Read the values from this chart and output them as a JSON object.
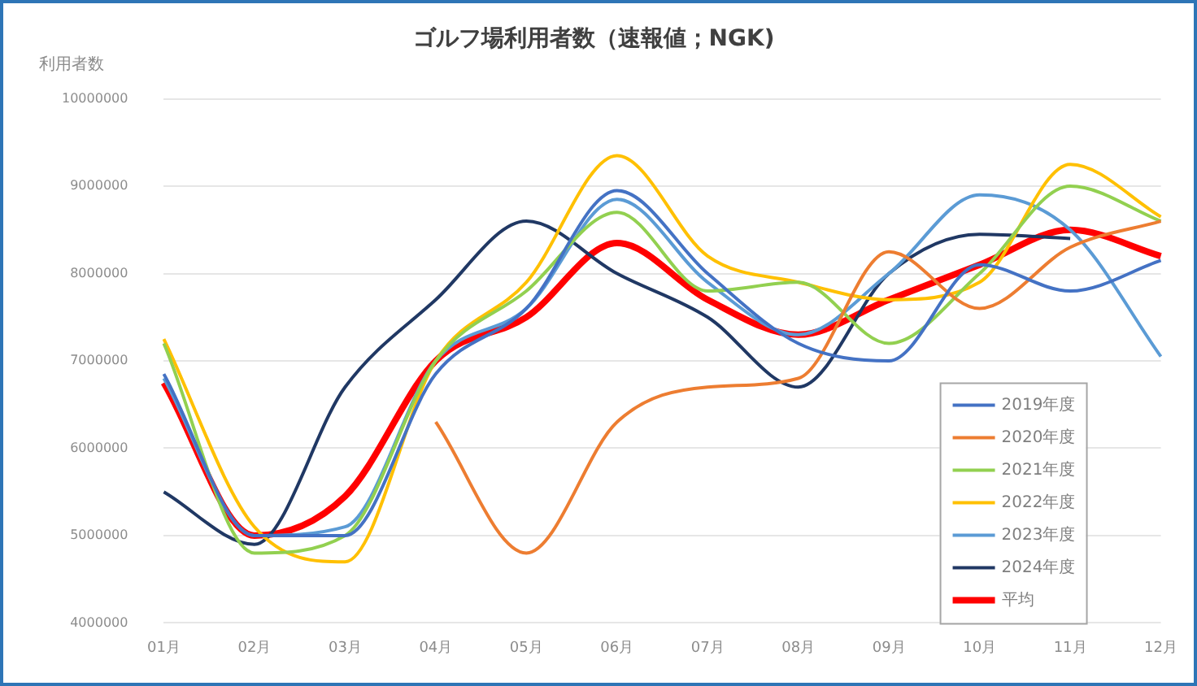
{
  "chart_data": {
    "type": "line",
    "title": "ゴルフ場利用者数（速報値；NGK)",
    "ylabel": "利用者数",
    "categories": [
      "01月",
      "02月",
      "03月",
      "04月",
      "05月",
      "06月",
      "07月",
      "08月",
      "09月",
      "10月",
      "11月",
      "12月"
    ],
    "series": [
      {
        "name": "2019年度",
        "color": "#4472c4",
        "values": [
          6850000,
          5000000,
          5000000,
          6850000,
          7600000,
          8950000,
          8000000,
          7200000,
          7000000,
          8100000,
          7800000,
          8150000
        ]
      },
      {
        "name": "2020年度",
        "color": "#ed7d31",
        "values": [
          null,
          null,
          null,
          6300000,
          4800000,
          6300000,
          6700000,
          6800000,
          8250000,
          7600000,
          8300000,
          8600000
        ]
      },
      {
        "name": "2021年度",
        "color": "#92d050",
        "values": [
          7200000,
          4800000,
          5000000,
          7000000,
          7800000,
          8700000,
          7800000,
          7900000,
          7200000,
          8000000,
          9000000,
          8600000
        ]
      },
      {
        "name": "2022年度",
        "color": "#ffc000",
        "values": [
          7250000,
          5100000,
          4700000,
          7000000,
          7900000,
          9350000,
          8200000,
          7900000,
          7700000,
          7900000,
          9250000,
          8650000
        ]
      },
      {
        "name": "2023年度",
        "color": "#5b9bd5",
        "values": [
          6800000,
          5000000,
          5100000,
          7000000,
          7600000,
          8850000,
          7900000,
          7300000,
          8000000,
          8900000,
          8500000,
          7050000
        ]
      },
      {
        "name": "2024年度",
        "color": "#203864",
        "values": [
          5500000,
          4900000,
          6700000,
          7700000,
          8600000,
          8000000,
          7500000,
          6700000,
          8000000,
          8450000,
          8400000,
          null
        ]
      },
      {
        "name": "平均",
        "color": "#ff0000",
        "values": [
          6750000,
          5000000,
          5450000,
          7000000,
          7500000,
          8350000,
          7700000,
          7300000,
          7700000,
          8100000,
          8500000,
          8200000
        ]
      }
    ],
    "ylim": [
      4000000,
      10000000
    ],
    "yticks": [
      4000000,
      5000000,
      6000000,
      7000000,
      8000000,
      9000000,
      10000000
    ],
    "grid": "y",
    "legend": "bottom right",
    "marker": "none",
    "line_style": "solid"
  }
}
